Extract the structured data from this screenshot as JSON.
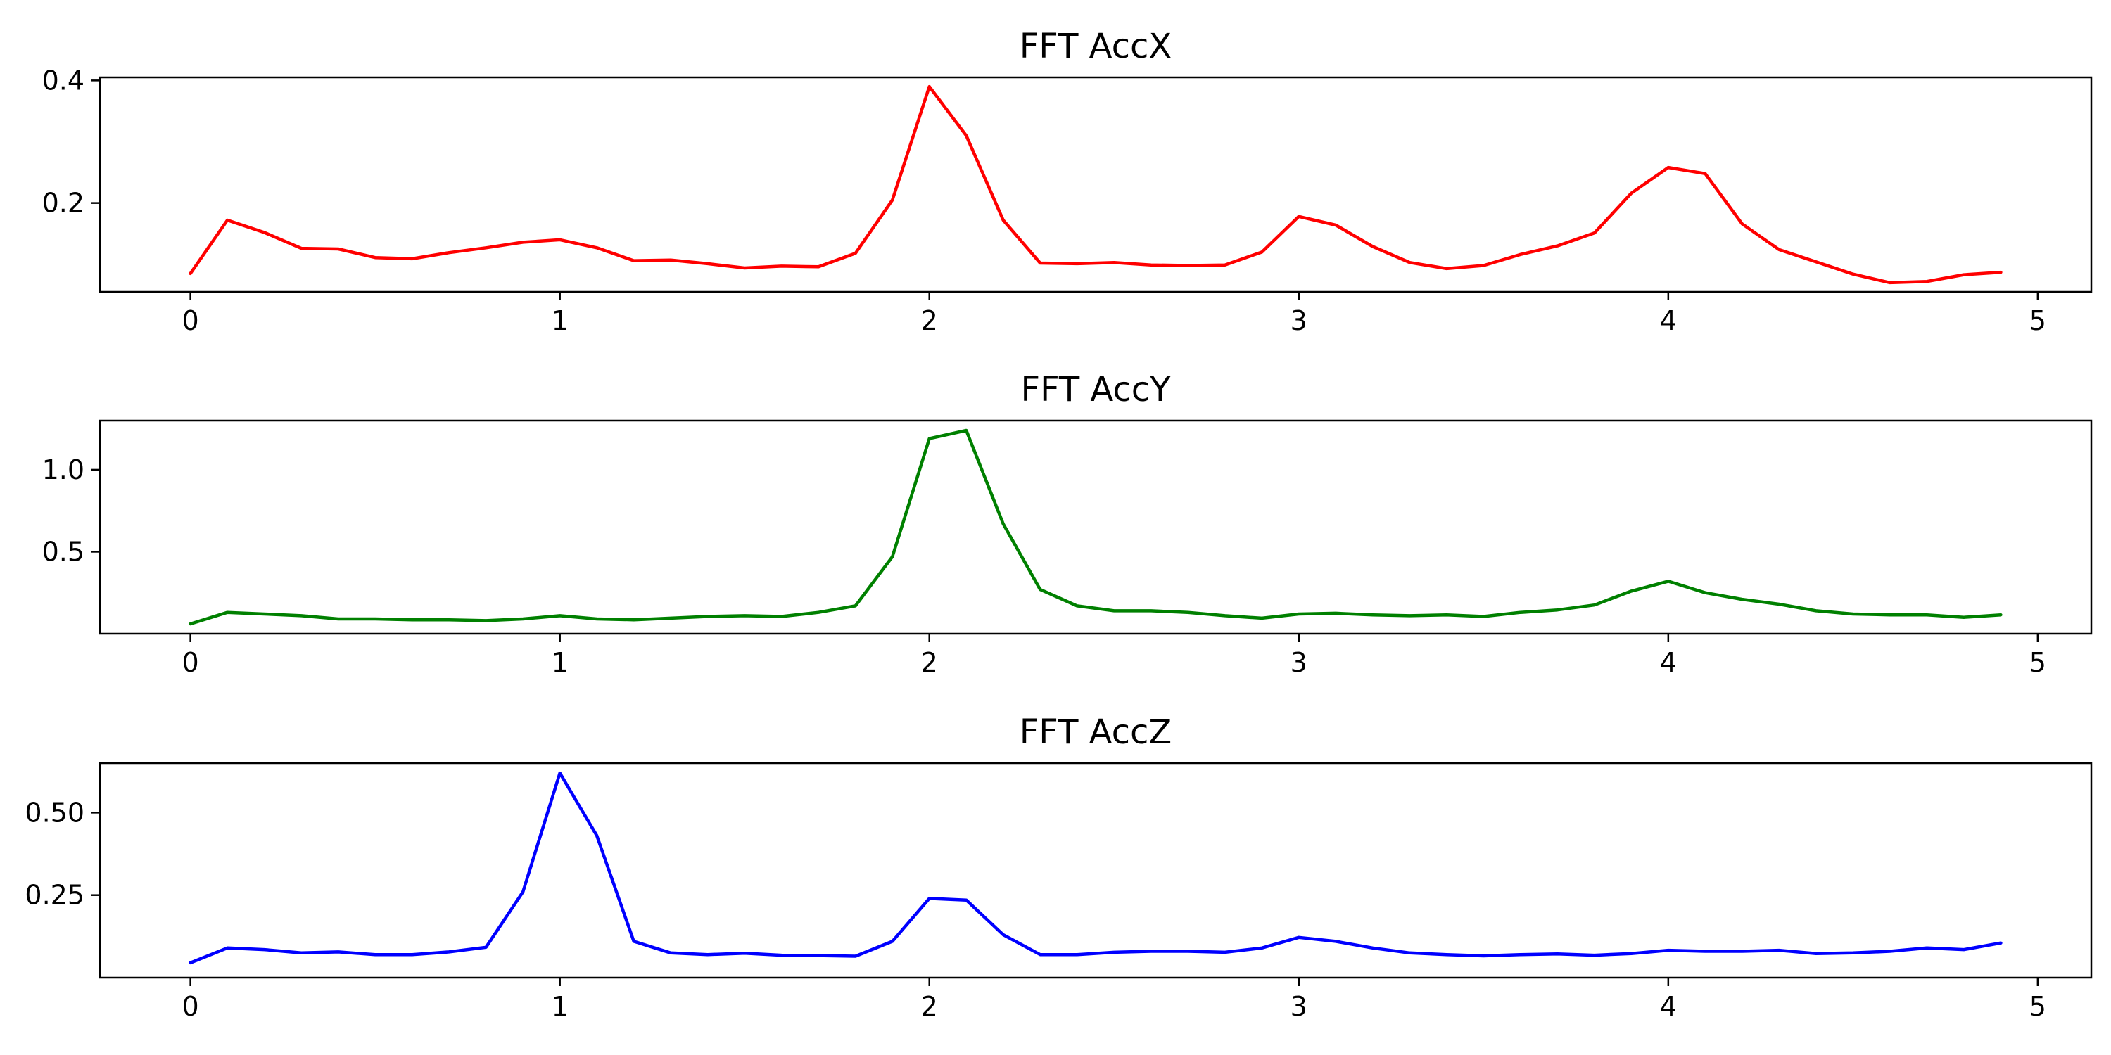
{
  "chart_data": [
    {
      "type": "line",
      "title": "FFT AccX",
      "color": "#ff0000",
      "x": [
        0,
        0.1,
        0.2,
        0.3,
        0.4,
        0.5,
        0.6,
        0.7,
        0.8,
        0.9,
        1.0,
        1.1,
        1.2,
        1.3,
        1.4,
        1.5,
        1.6,
        1.7,
        1.8,
        1.9,
        2.0,
        2.1,
        2.2,
        2.3,
        2.4,
        2.5,
        2.6,
        2.7,
        2.8,
        2.9,
        3.0,
        3.1,
        3.2,
        3.3,
        3.4,
        3.5,
        3.6,
        3.7,
        3.8,
        3.9,
        4.0,
        4.1,
        4.2,
        4.3,
        4.4,
        4.5,
        4.6,
        4.7,
        4.8,
        4.9
      ],
      "values": [
        0.085,
        0.172,
        0.152,
        0.126,
        0.125,
        0.111,
        0.109,
        0.119,
        0.127,
        0.136,
        0.14,
        0.127,
        0.106,
        0.107,
        0.101,
        0.094,
        0.097,
        0.096,
        0.118,
        0.205,
        0.39,
        0.31,
        0.172,
        0.102,
        0.101,
        0.103,
        0.099,
        0.098,
        0.099,
        0.12,
        0.178,
        0.164,
        0.129,
        0.103,
        0.093,
        0.098,
        0.116,
        0.13,
        0.151,
        0.216,
        0.258,
        0.248,
        0.166,
        0.124,
        0.104,
        0.084,
        0.07,
        0.072,
        0.083,
        0.087
      ],
      "xlim": [
        -0.245,
        5.145
      ],
      "ylim": [
        0.055,
        0.405
      ],
      "xticks": [
        0,
        1,
        2,
        3,
        4,
        5
      ],
      "yticks": [
        0.2,
        0.4
      ],
      "ytick_labels": [
        "0.2",
        "0.4"
      ],
      "grid": false
    },
    {
      "type": "line",
      "title": "FFT AccY",
      "color": "#008000",
      "x": [
        0,
        0.1,
        0.2,
        0.3,
        0.4,
        0.5,
        0.6,
        0.7,
        0.8,
        0.9,
        1.0,
        1.1,
        1.2,
        1.3,
        1.4,
        1.5,
        1.6,
        1.7,
        1.8,
        1.9,
        2.0,
        2.1,
        2.2,
        2.3,
        2.4,
        2.5,
        2.6,
        2.7,
        2.8,
        2.9,
        3.0,
        3.1,
        3.2,
        3.3,
        3.4,
        3.5,
        3.6,
        3.7,
        3.8,
        3.9,
        4.0,
        4.1,
        4.2,
        4.3,
        4.4,
        4.5,
        4.6,
        4.7,
        4.8,
        4.9
      ],
      "values": [
        0.06,
        0.13,
        0.12,
        0.11,
        0.09,
        0.09,
        0.085,
        0.085,
        0.08,
        0.09,
        0.11,
        0.09,
        0.085,
        0.095,
        0.105,
        0.11,
        0.105,
        0.13,
        0.17,
        0.47,
        1.19,
        1.24,
        0.67,
        0.27,
        0.17,
        0.14,
        0.14,
        0.13,
        0.11,
        0.095,
        0.12,
        0.125,
        0.115,
        0.11,
        0.115,
        0.105,
        0.13,
        0.145,
        0.175,
        0.26,
        0.32,
        0.25,
        0.21,
        0.18,
        0.14,
        0.12,
        0.115,
        0.115,
        0.1,
        0.115
      ],
      "xlim": [
        -0.245,
        5.145
      ],
      "ylim": [
        0.0,
        1.3
      ],
      "xticks": [
        0,
        1,
        2,
        3,
        4,
        5
      ],
      "yticks": [
        0.5,
        1.0
      ],
      "ytick_labels": [
        "0.5",
        "1.0"
      ],
      "grid": false
    },
    {
      "type": "line",
      "title": "FFT AccZ",
      "color": "#0000ff",
      "x": [
        0,
        0.1,
        0.2,
        0.3,
        0.4,
        0.5,
        0.6,
        0.7,
        0.8,
        0.9,
        1.0,
        1.1,
        1.2,
        1.3,
        1.4,
        1.5,
        1.6,
        1.7,
        1.8,
        1.9,
        2.0,
        2.1,
        2.2,
        2.3,
        2.4,
        2.5,
        2.6,
        2.7,
        2.8,
        2.9,
        3.0,
        3.1,
        3.2,
        3.3,
        3.4,
        3.5,
        3.6,
        3.7,
        3.8,
        3.9,
        4.0,
        4.1,
        4.2,
        4.3,
        4.4,
        4.5,
        4.6,
        4.7,
        4.8,
        4.9
      ],
      "values": [
        0.045,
        0.09,
        0.085,
        0.075,
        0.078,
        0.07,
        0.07,
        0.078,
        0.092,
        0.26,
        0.62,
        0.43,
        0.11,
        0.075,
        0.07,
        0.074,
        0.068,
        0.067,
        0.065,
        0.11,
        0.24,
        0.235,
        0.13,
        0.07,
        0.07,
        0.077,
        0.08,
        0.08,
        0.077,
        0.09,
        0.122,
        0.11,
        0.09,
        0.075,
        0.07,
        0.066,
        0.07,
        0.072,
        0.068,
        0.073,
        0.083,
        0.08,
        0.08,
        0.083,
        0.073,
        0.075,
        0.08,
        0.09,
        0.085,
        0.105
      ],
      "xlim": [
        -0.245,
        5.145
      ],
      "ylim": [
        0.0,
        0.65
      ],
      "xticks": [
        0,
        1,
        2,
        3,
        4,
        5
      ],
      "yticks": [
        0.25,
        0.5
      ],
      "ytick_labels": [
        "0.25",
        "0.50"
      ],
      "grid": false
    }
  ]
}
